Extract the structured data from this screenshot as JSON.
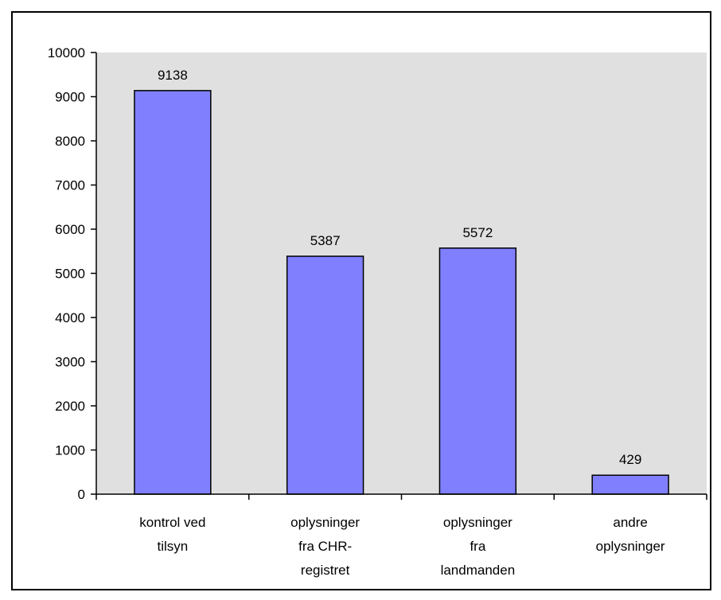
{
  "chart_data": {
    "type": "bar",
    "title": "",
    "xlabel": "",
    "ylabel": "",
    "ylim": [
      0,
      10000
    ],
    "yticks": [
      0,
      1000,
      2000,
      3000,
      4000,
      5000,
      6000,
      7000,
      8000,
      9000,
      10000
    ],
    "grid": false,
    "legend": "none",
    "categories": [
      [
        "kontrol ved",
        "tilsyn"
      ],
      [
        "oplysninger",
        "fra CHR-",
        "registret"
      ],
      [
        "oplysninger",
        "fra",
        "landmanden"
      ],
      [
        "andre",
        "oplysninger"
      ]
    ],
    "values": [
      9138,
      5387,
      5572,
      429
    ],
    "data_labels": [
      "9138",
      "5387",
      "5572",
      "429"
    ],
    "colors": {
      "bar_fill": "#8080ff",
      "bar_stroke": "#000000",
      "plot_background": "#e0e0e0",
      "axis": "#000000"
    }
  }
}
